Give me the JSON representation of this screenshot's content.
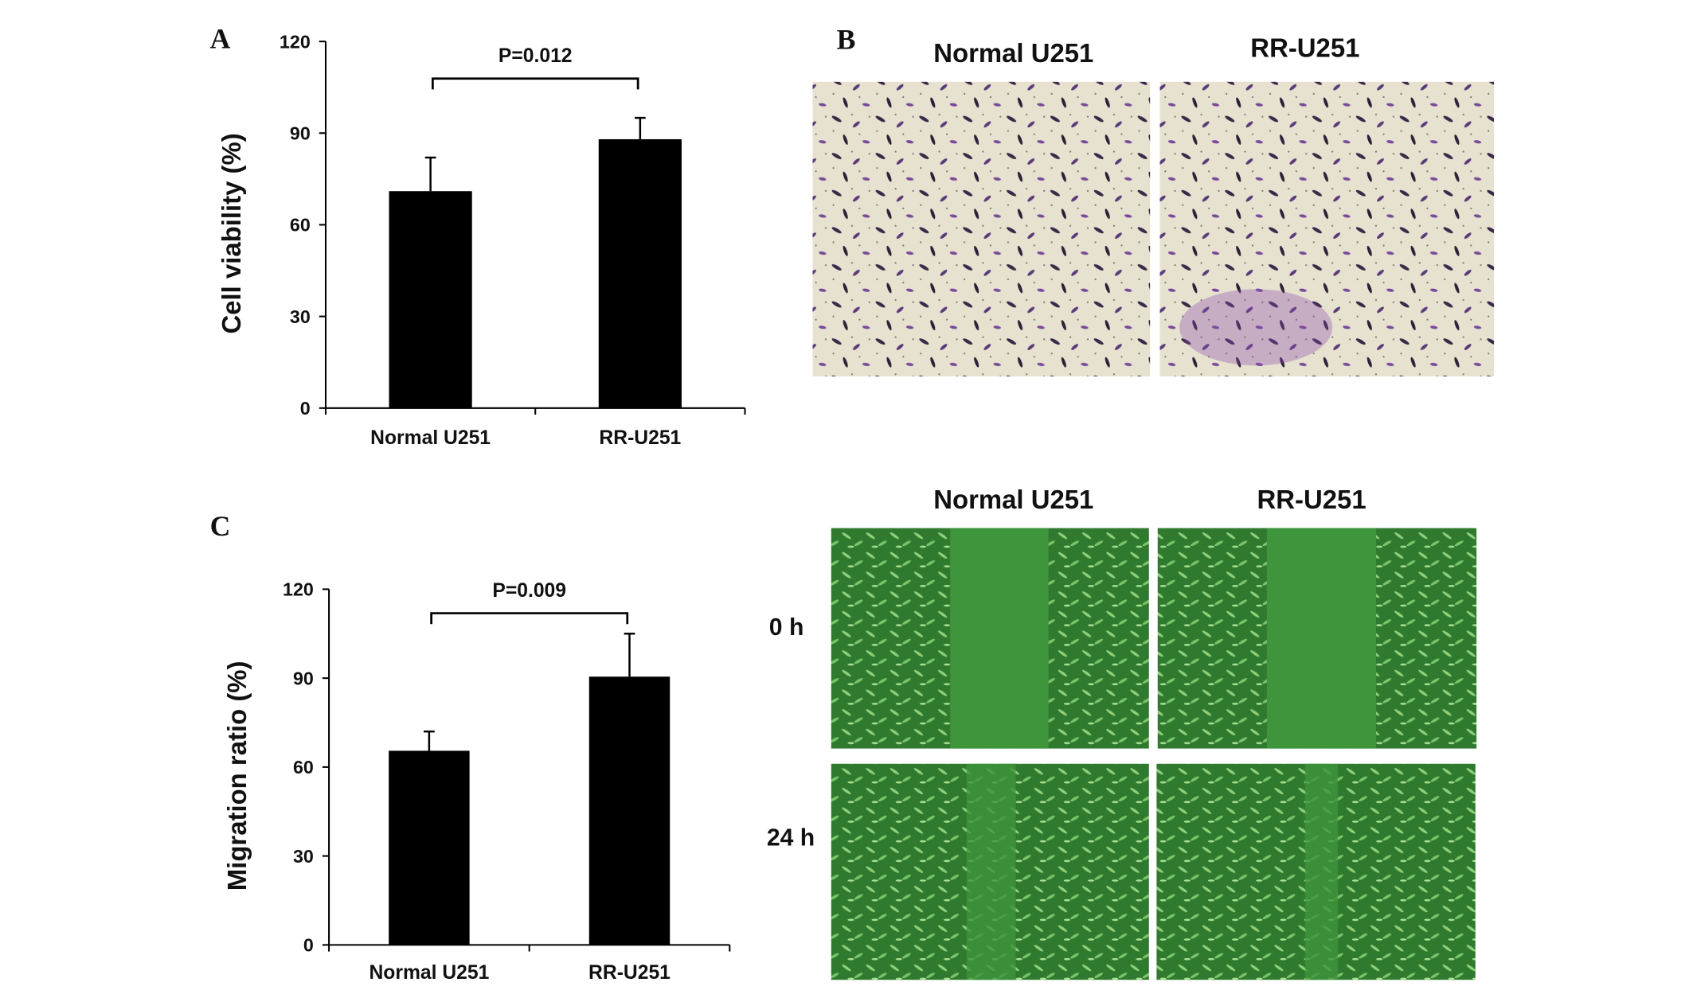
{
  "chart_data": [
    {
      "type": "bar",
      "panel": "A",
      "ylabel": "Cell viability (%)",
      "categories": [
        "Normal U251",
        "RR-U251"
      ],
      "values": [
        71,
        88
      ],
      "errors": [
        11,
        7
      ],
      "color": "#000000",
      "ylim": [
        0,
        120
      ],
      "yticks": [
        0,
        30,
        60,
        90,
        120
      ],
      "annotation": "P=0.012"
    },
    {
      "type": "bar",
      "panel": "C",
      "ylabel": "Migration ratio (%)",
      "categories": [
        "Normal U251",
        "RR-U251"
      ],
      "values": [
        65.5,
        90.5
      ],
      "errors": [
        6.5,
        14.5
      ],
      "color": "#000000",
      "ylim": [
        0,
        120
      ],
      "yticks": [
        0,
        30,
        60,
        90,
        120
      ],
      "annotation": "P=0.009"
    }
  ],
  "panel_b": {
    "label": "B",
    "headers": [
      "Normal U251",
      "RR-U251"
    ]
  },
  "panel_d": {
    "headers": [
      "Normal U251",
      "RR-U251"
    ],
    "rows": [
      "0 h",
      "24 h"
    ]
  }
}
